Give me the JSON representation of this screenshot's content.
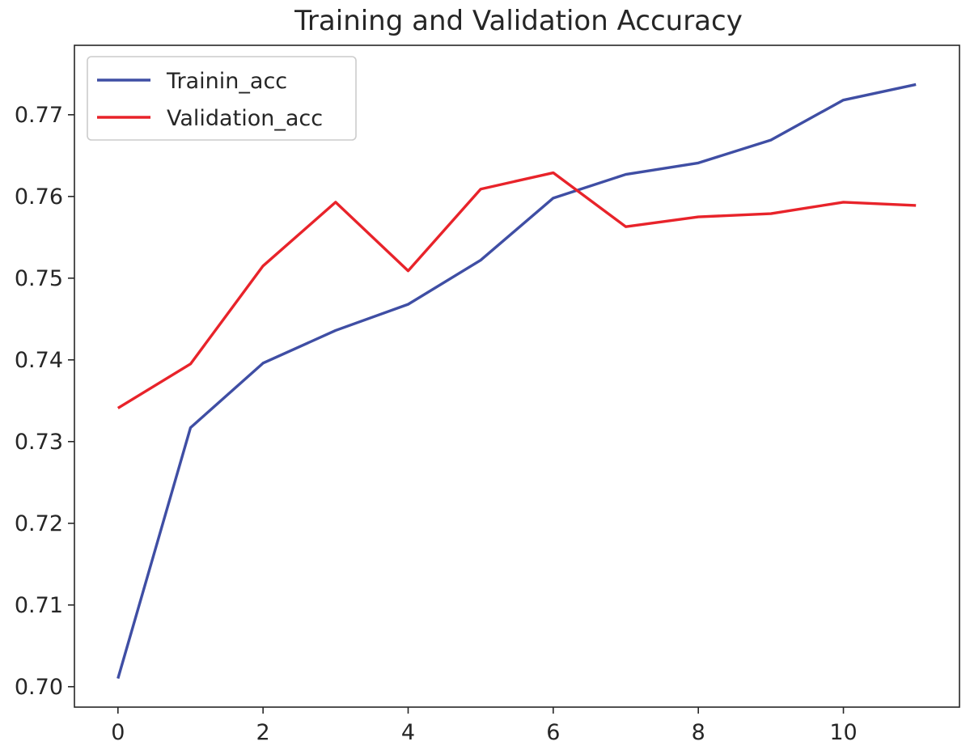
{
  "chart_data": {
    "type": "line",
    "title": "Training and Validation Accuracy",
    "xlabel": "",
    "ylabel": "",
    "x": [
      0,
      1,
      2,
      3,
      4,
      5,
      6,
      7,
      8,
      9,
      10,
      11
    ],
    "xlim": [
      -0.6,
      11.6
    ],
    "ylim": [
      0.6975,
      0.7785
    ],
    "x_ticks": [
      0,
      2,
      4,
      6,
      8,
      10
    ],
    "x_tick_labels": [
      "0",
      "2",
      "4",
      "6",
      "8",
      "10"
    ],
    "y_ticks": [
      0.7,
      0.71,
      0.72,
      0.73,
      0.74,
      0.75,
      0.76,
      0.77
    ],
    "y_tick_labels": [
      "0.70",
      "0.71",
      "0.72",
      "0.73",
      "0.74",
      "0.75",
      "0.76",
      "0.77"
    ],
    "grid": false,
    "legend_position": "top-left",
    "series": [
      {
        "name": "Trainin_acc",
        "color": "#3f4ea4",
        "values": [
          0.701,
          0.7317,
          0.7396,
          0.7436,
          0.7468,
          0.7522,
          0.7598,
          0.7627,
          0.7641,
          0.7669,
          0.7718,
          0.7737
        ]
      },
      {
        "name": "Validation_acc",
        "color": "#e8232a",
        "values": [
          0.7341,
          0.7395,
          0.7515,
          0.7593,
          0.7509,
          0.7609,
          0.7629,
          0.7563,
          0.7575,
          0.7579,
          0.7593,
          0.7589
        ]
      }
    ]
  }
}
